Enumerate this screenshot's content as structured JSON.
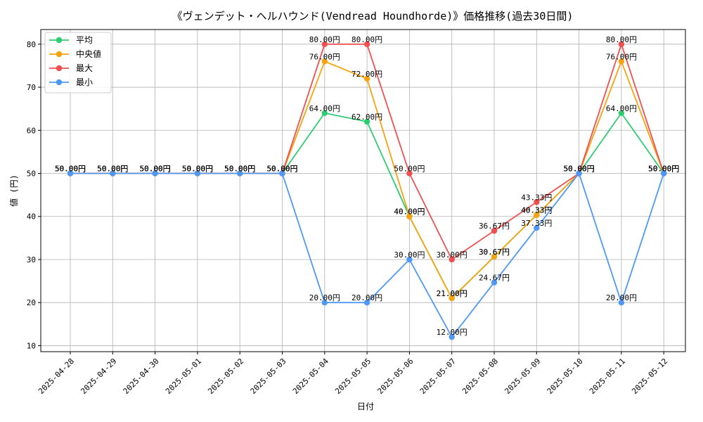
{
  "chart_data": {
    "type": "line",
    "title": "《ヴェンデット・ヘルハウンド(Vendread Houndhorde)》価格推移(過去30日間)",
    "xlabel": "日付",
    "ylabel": "値 (円)",
    "ylim": [
      8.6,
      83.4
    ],
    "yticks": [
      10,
      20,
      30,
      40,
      50,
      60,
      70,
      80
    ],
    "grid": true,
    "legend_position": "top-left",
    "value_suffix": "円",
    "categories": [
      "2025-04-28",
      "2025-04-29",
      "2025-04-30",
      "2025-05-01",
      "2025-05-02",
      "2025-05-03",
      "2025-05-04",
      "2025-05-05",
      "2025-05-06",
      "2025-05-07",
      "2025-05-08",
      "2025-05-09",
      "2025-05-10",
      "2025-05-11",
      "2025-05-12"
    ],
    "series": [
      {
        "name": "平均",
        "color": "#2ecc71",
        "values": [
          50,
          50,
          50,
          50,
          50,
          50,
          64,
          62,
          40,
          21,
          30.67,
          40.33,
          50,
          64,
          50
        ]
      },
      {
        "name": "中央値",
        "color": "#f5a30f",
        "values": [
          50,
          50,
          50,
          50,
          50,
          50,
          76,
          72,
          40,
          21,
          30.67,
          40.33,
          50,
          76,
          50
        ]
      },
      {
        "name": "最大",
        "color": "#f05050",
        "values": [
          50,
          50,
          50,
          50,
          50,
          50,
          80,
          80,
          50,
          30,
          36.67,
          43.33,
          50,
          80,
          50
        ]
      },
      {
        "name": "最小",
        "color": "#4f98f5",
        "values": [
          50,
          50,
          50,
          50,
          50,
          50,
          20,
          20,
          30,
          12,
          24.67,
          37.33,
          50,
          20,
          50
        ]
      }
    ]
  }
}
